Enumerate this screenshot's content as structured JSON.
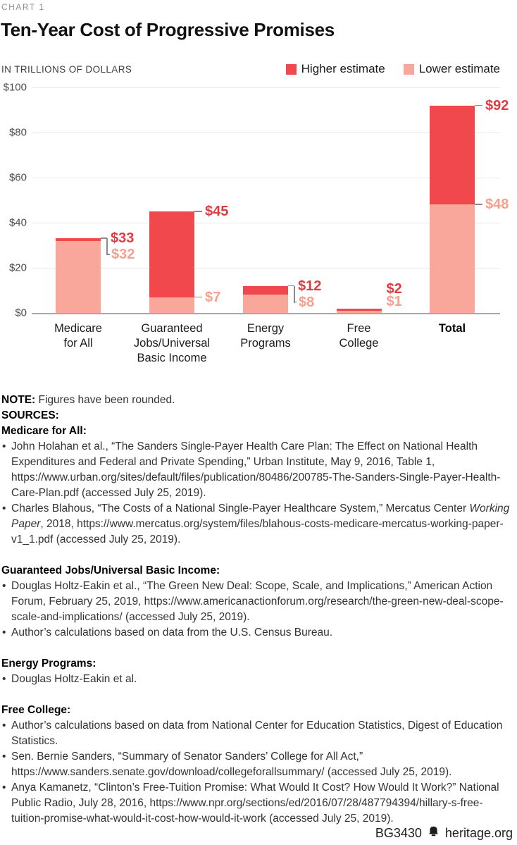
{
  "header": {
    "kicker": "CHART 1",
    "title": "Ten-Year Cost of Progressive Promises"
  },
  "chart_data": {
    "type": "bar",
    "units_label": "IN TRILLIONS OF DOLLARS",
    "legend": [
      {
        "label": "Higher estimate",
        "color": "#f0484c"
      },
      {
        "label": "Lower estimate",
        "color": "#f8a79a"
      }
    ],
    "colors": {
      "higher": "#f0484c",
      "lower": "#f8a79a",
      "higher_label": "#e13b40",
      "lower_label": "#f7a08f",
      "connector": "#8a8a8a",
      "gridline": "#e9e9e9",
      "axis_line": "#a8a8a8"
    },
    "y_axis": {
      "ticks": [
        "$100",
        "$80",
        "$60",
        "$40",
        "$20",
        "$0"
      ],
      "tick_values": [
        100,
        80,
        60,
        40,
        20,
        0
      ],
      "min": 0,
      "max": 100,
      "grid": true
    },
    "categories": [
      {
        "label_lines": [
          "Medicare",
          "for All"
        ],
        "hi_label": "$33",
        "lo_label": "$32",
        "label_mode": "bracket",
        "bold": false
      },
      {
        "label_lines": [
          "Guaranteed",
          "Jobs/Universal",
          "Basic Income"
        ],
        "hi_label": "$45",
        "lo_label": "$7",
        "label_mode": "side",
        "bold": false
      },
      {
        "label_lines": [
          "Energy",
          "Programs"
        ],
        "hi_label": "$12",
        "lo_label": "$8",
        "label_mode": "bracket",
        "bold": false
      },
      {
        "label_lines": [
          "Free",
          "College"
        ],
        "hi_label": "$2",
        "lo_label": "$1",
        "label_mode": "stacked",
        "bold": false
      },
      {
        "label_lines": [
          "Total"
        ],
        "hi_label": "$92",
        "lo_label": "$48",
        "label_mode": "side",
        "bold": true
      }
    ],
    "series": [
      {
        "name": "Higher estimate",
        "values": [
          33,
          45,
          12,
          2,
          92
        ]
      },
      {
        "name": "Lower estimate",
        "values": [
          32,
          7,
          8,
          1,
          48
        ]
      }
    ]
  },
  "notes": {
    "note_label": "NOTE:",
    "note_text": " Figures have been rounded.",
    "sources_label": "SOURCES:",
    "sections": [
      {
        "heading": "Medicare for All:",
        "bullets": [
          [
            {
              "t": "John Holahan et al., “The Sanders Single-Payer Health Care Plan: The Effect on National Health Expenditures and Federal and Private Spending,” Urban Institute, May 9, 2016, Table 1, https://www.urban.org/sites/default/files/publication/80486/200785-The-Sanders-Single-Payer-Health-Care-Plan.pdf (accessed July 25, 2019)."
            }
          ],
          [
            {
              "t": "Charles Blahous, “The Costs of a National Single-Payer Healthcare System,” Mercatus Center "
            },
            {
              "t": "Working Paper",
              "i": true
            },
            {
              "t": ", 2018, https://www.mercatus.org/system/files/blahous-costs-medicare-mercatus-working-paper-v1_1.pdf (accessed July 25, 2019)."
            }
          ]
        ]
      },
      {
        "heading": "Guaranteed Jobs/Universal Basic Income:",
        "bullets": [
          [
            {
              "t": "Douglas Holtz-Eakin et al., “The Green New Deal: Scope, Scale, and Implications,” American Action Forum, February 25, 2019, https://www.americanactionforum.org/research/the-green-new-deal-scope-scale-and-implications/ (accessed July 25, 2019)."
            }
          ],
          [
            {
              "t": "Author’s calculations based on data from the U.S. Census Bureau."
            }
          ]
        ]
      },
      {
        "heading": "Energy Programs:",
        "bullets": [
          [
            {
              "t": "Douglas Holtz-Eakin et al."
            }
          ]
        ]
      },
      {
        "heading": "Free College:",
        "bullets": [
          [
            {
              "t": "Author’s calculations based on data from National Center for Education Statistics, Digest of Education Statistics."
            }
          ],
          [
            {
              "t": "Sen. Bernie Sanders, “Summary of Senator Sanders’ College for All Act,” https://www.sanders.senate.gov/download/collegeforallsummary/ (accessed July 25, 2019)."
            }
          ],
          [
            {
              "t": "Anya Kamanetz, “Clinton’s Free-Tuition Promise: What Would It Cost? How Would It Work?” National Public Radio, July 28, 2016, https://www.npr.org/sections/ed/2016/07/28/487794394/hillary-s-free-tuition-promise-what-would-it-cost-how-would-it-work (accessed July 25, 2019)."
            }
          ]
        ]
      }
    ]
  },
  "footer": {
    "doc_id": "BG3430",
    "site": "heritage.org"
  }
}
